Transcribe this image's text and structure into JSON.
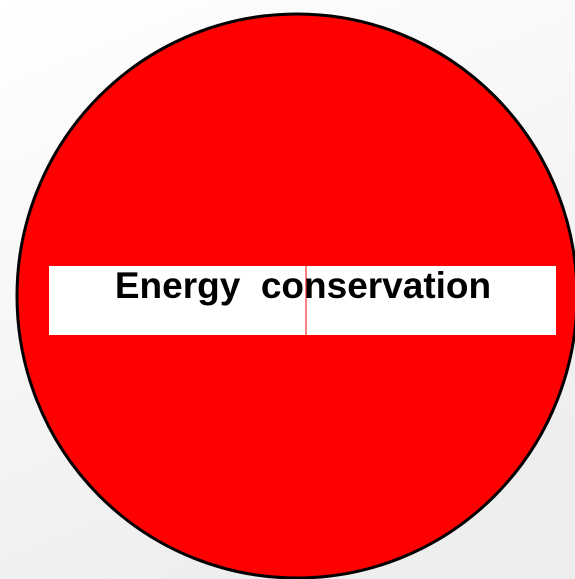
{
  "sign": {
    "text": "Energy  conservation"
  }
}
